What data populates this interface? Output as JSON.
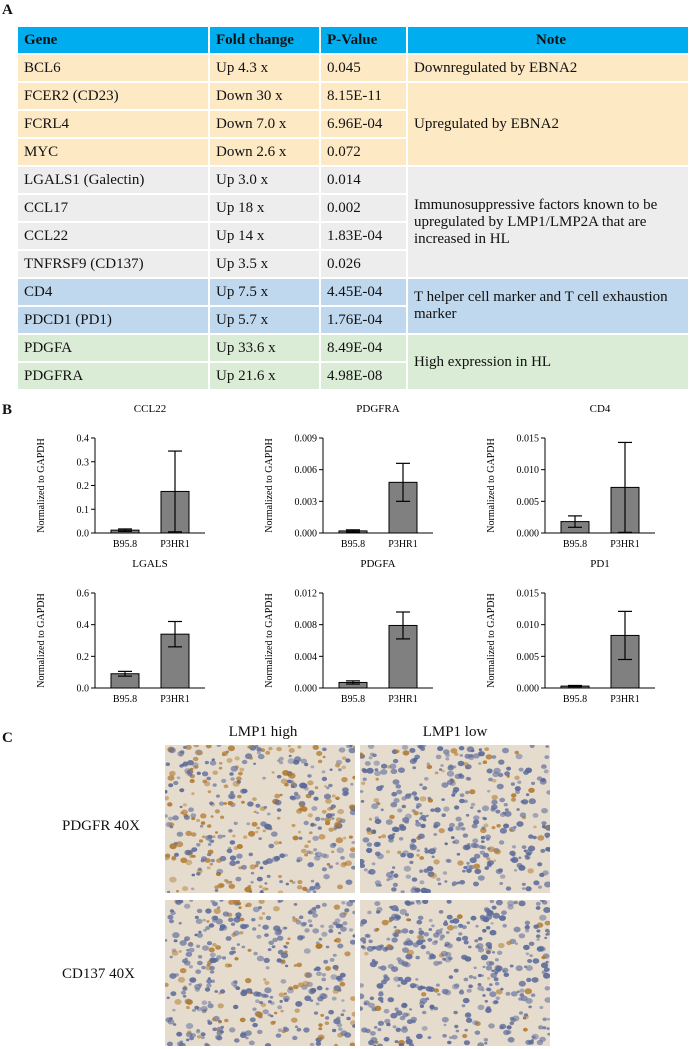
{
  "panels": {
    "a": "A",
    "b": "B",
    "c": "C"
  },
  "table": {
    "headers": [
      "Gene",
      "Fold change",
      "P-Value",
      "Note"
    ],
    "rows": [
      {
        "gene": "BCL6",
        "fold": "Up  4.3 x",
        "p": "0.045",
        "group": 0
      },
      {
        "gene": "FCER2 (CD23)",
        "fold": "Down 30 x",
        "p": "8.15E-11",
        "group": 1
      },
      {
        "gene": "FCRL4",
        "fold": "Down  7.0 x",
        "p": "6.96E-04",
        "group": 1
      },
      {
        "gene": "MYC",
        "fold": "Down 2.6 x",
        "p": "0.072",
        "group": 1
      },
      {
        "gene": "LGALS1 (Galectin)",
        "fold": "Up  3.0 x",
        "p": "0.014",
        "group": 2
      },
      {
        "gene": "CCL17",
        "fold": "Up  18 x",
        "p": "0.002",
        "group": 2
      },
      {
        "gene": "CCL22",
        "fold": "Up 14 x",
        "p": "1.83E-04",
        "group": 2
      },
      {
        "gene": "TNFRSF9 (CD137)",
        "fold": "Up   3.5 x",
        "p": "0.026",
        "group": 2
      },
      {
        "gene": "CD4",
        "fold": "Up  7.5 x",
        "p": "4.45E-04",
        "group": 3
      },
      {
        "gene": "PDCD1 (PD1)",
        "fold": "Up  5.7 x",
        "p": "1.76E-04",
        "group": 3
      },
      {
        "gene": "PDGFA",
        "fold": "Up  33.6 x",
        "p": "8.49E-04",
        "group": 4
      },
      {
        "gene": "PDGFRA",
        "fold": "Up  21.6 x",
        "p": "4.98E-08",
        "group": 4
      }
    ],
    "groups": [
      {
        "note": "Downregulated by EBNA2",
        "color": "#fde9c4"
      },
      {
        "note": "Upregulated by EBNA2",
        "color": "#fde9c4"
      },
      {
        "note": "Immunosuppressive factors known to be upregulated by LMP1/LMP2A that are increased in HL",
        "color": "#ededed"
      },
      {
        "note": "T helper cell marker and T cell exhaustion marker",
        "color": "#c0d8ee"
      },
      {
        "note": "High expression in HL",
        "color": "#dbecd6"
      }
    ]
  },
  "chart_data": [
    {
      "type": "bar",
      "title": "CCL22",
      "ylabel": "Normalized to GAPDH",
      "categories": [
        "B95.8",
        "P3HR1"
      ],
      "values": [
        0.012,
        0.175
      ],
      "errors": [
        0.005,
        0.17
      ],
      "ylim": [
        0,
        0.4
      ],
      "yticks": [
        "0.0",
        "0.1",
        "0.2",
        "0.3",
        "0.4"
      ]
    },
    {
      "type": "bar",
      "title": "PDGFRA",
      "ylabel": "Normalized to GAPDH",
      "categories": [
        "B95.8",
        "P3HR1"
      ],
      "values": [
        0.0002,
        0.0048
      ],
      "errors": [
        0.0001,
        0.0018
      ],
      "ylim": [
        0,
        0.009
      ],
      "yticks": [
        "0.000",
        "0.003",
        "0.006",
        "0.009"
      ]
    },
    {
      "type": "bar",
      "title": "CD4",
      "ylabel": "Normalized to GAPDH",
      "categories": [
        "B95.8",
        "P3HR1"
      ],
      "values": [
        0.0018,
        0.0072
      ],
      "errors": [
        0.0009,
        0.0071
      ],
      "ylim": [
        0,
        0.015
      ],
      "yticks": [
        "0.000",
        "0.005",
        "0.010",
        "0.015"
      ]
    },
    {
      "type": "bar",
      "title": "LGALS",
      "ylabel": "Normalized to GAPDH",
      "categories": [
        "B95.8",
        "P3HR1"
      ],
      "values": [
        0.09,
        0.34
      ],
      "errors": [
        0.015,
        0.08
      ],
      "ylim": [
        0,
        0.6
      ],
      "yticks": [
        "0.0",
        "0.2",
        "0.4",
        "0.6"
      ]
    },
    {
      "type": "bar",
      "title": "PDGFA",
      "ylabel": "Normalized to GAPDH",
      "categories": [
        "B95.8",
        "P3HR1"
      ],
      "values": [
        0.0007,
        0.0079
      ],
      "errors": [
        0.0002,
        0.0017
      ],
      "ylim": [
        0,
        0.012
      ],
      "yticks": [
        "0.000",
        "0.004",
        "0.008",
        "0.012"
      ]
    },
    {
      "type": "bar",
      "title": "PD1",
      "ylabel": "Normalized to GAPDH",
      "categories": [
        "B95.8",
        "P3HR1"
      ],
      "values": [
        0.0003,
        0.0083
      ],
      "errors": [
        0.0001,
        0.0038
      ],
      "ylim": [
        0,
        0.015
      ],
      "yticks": [
        "0.000",
        "0.005",
        "0.010",
        "0.015"
      ]
    }
  ],
  "ihc": {
    "columns": [
      "LMP1 high",
      "LMP1 low"
    ],
    "rows": [
      "PDGFR 40X",
      "CD137 40X"
    ],
    "stain_colors": {
      "background": "#e6dccd",
      "nuclei": "#5b6a9a",
      "brown": "#b07a30"
    }
  }
}
